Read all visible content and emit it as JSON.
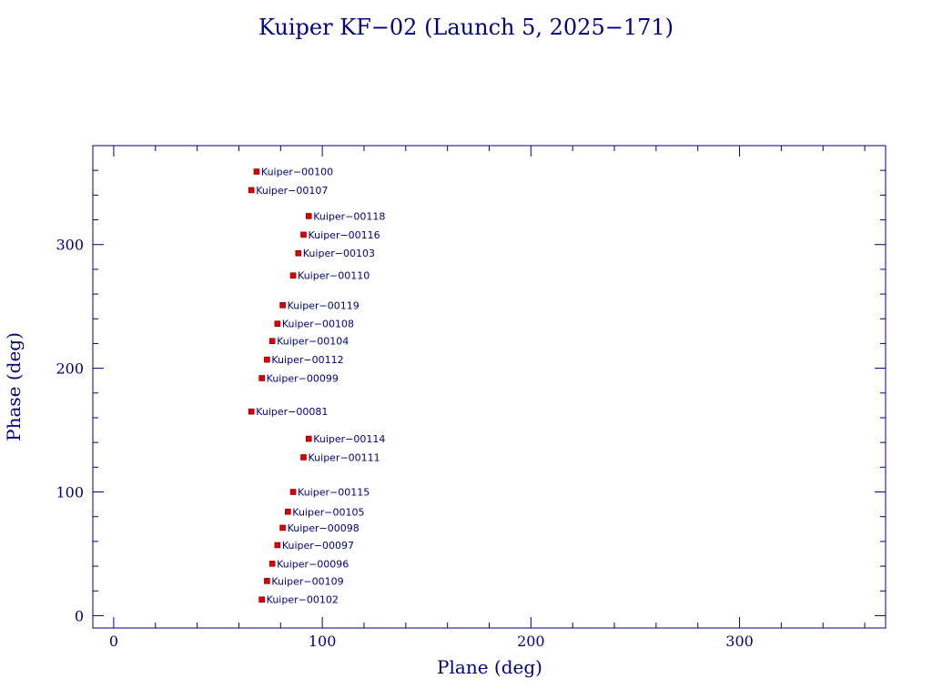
{
  "chart_data": {
    "type": "scatter",
    "title": "Kuiper KF−02 (Launch 5, 2025−171)",
    "xlabel": "Plane (deg)",
    "ylabel": "Phase (deg)",
    "xlim": [
      -10,
      370
    ],
    "ylim": [
      -10,
      380
    ],
    "x_ticks": [
      0,
      100,
      200,
      300
    ],
    "y_ticks": [
      0,
      100,
      200,
      300
    ],
    "x_minor_step": 20,
    "y_minor_step": 20,
    "grid": false,
    "colors": {
      "axis": "#000080",
      "marker": "#dd0000",
      "text": "#000080"
    },
    "points": [
      {
        "label": "Kuiper−00100",
        "x": 68.5,
        "y": 359
      },
      {
        "label": "Kuiper−00107",
        "x": 66.0,
        "y": 344
      },
      {
        "label": "Kuiper−00118",
        "x": 93.5,
        "y": 323
      },
      {
        "label": "Kuiper−00116",
        "x": 91.0,
        "y": 308
      },
      {
        "label": "Kuiper−00103",
        "x": 88.5,
        "y": 293
      },
      {
        "label": "Kuiper−00110",
        "x": 86.0,
        "y": 275
      },
      {
        "label": "Kuiper−00119",
        "x": 81.0,
        "y": 251
      },
      {
        "label": "Kuiper−00108",
        "x": 78.5,
        "y": 236
      },
      {
        "label": "Kuiper−00104",
        "x": 76.0,
        "y": 222
      },
      {
        "label": "Kuiper−00112",
        "x": 73.5,
        "y": 207
      },
      {
        "label": "Kuiper−00099",
        "x": 71.0,
        "y": 192
      },
      {
        "label": "Kuiper−00081",
        "x": 66.0,
        "y": 165
      },
      {
        "label": "Kuiper−00114",
        "x": 93.5,
        "y": 143
      },
      {
        "label": "Kuiper−00111",
        "x": 91.0,
        "y": 128
      },
      {
        "label": "Kuiper−00115",
        "x": 86.0,
        "y": 100
      },
      {
        "label": "Kuiper−00105",
        "x": 83.5,
        "y": 84
      },
      {
        "label": "Kuiper−00098",
        "x": 81.0,
        "y": 71
      },
      {
        "label": "Kuiper−00097",
        "x": 78.5,
        "y": 57
      },
      {
        "label": "Kuiper−00096",
        "x": 76.0,
        "y": 42
      },
      {
        "label": "Kuiper−00109",
        "x": 73.5,
        "y": 28
      },
      {
        "label": "Kuiper−00102",
        "x": 71.0,
        "y": 13
      }
    ]
  }
}
